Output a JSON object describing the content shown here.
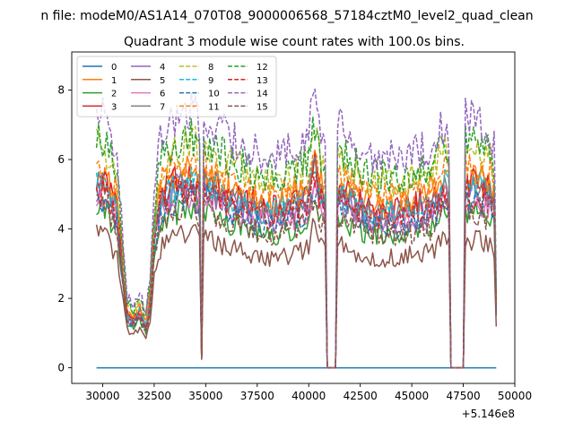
{
  "chart_data": {
    "type": "line",
    "suptitle": "n file: modeM0/AS1A14_070T08_9000006568_57184cztM0_level2_quad_clean",
    "title": "Quadrant 3 module wise count rates with 100.0s bins.",
    "xlabel": "",
    "ylabel": "",
    "offset_text": "+5.146e8",
    "xlim": [
      28500,
      50000
    ],
    "ylim": [
      -0.45,
      9.1
    ],
    "xticks": [
      30000,
      32500,
      35000,
      37500,
      40000,
      42500,
      45000,
      47500,
      50000
    ],
    "xtick_labels": [
      "30000",
      "32500",
      "35000",
      "37500",
      "40000",
      "42500",
      "45000",
      "47500",
      "50000"
    ],
    "yticks": [
      0,
      2,
      4,
      6,
      8
    ],
    "ytick_labels": [
      "0",
      "2",
      "4",
      "6",
      "8"
    ],
    "grid": false,
    "legend_position": "upper-left",
    "legend_columns": 4,
    "x_start": 29700,
    "x_end": 49100,
    "bin": 100,
    "profile_keypoints": [
      [
        29700,
        1.0
      ],
      [
        30200,
        0.97
      ],
      [
        30700,
        0.85
      ],
      [
        31000,
        0.5
      ],
      [
        31200,
        0.28
      ],
      [
        31500,
        0.25
      ],
      [
        31800,
        0.3
      ],
      [
        32100,
        0.22
      ],
      [
        32300,
        0.35
      ],
      [
        32500,
        0.7
      ],
      [
        32800,
        0.9
      ],
      [
        33200,
        0.95
      ],
      [
        33800,
        1.0
      ],
      [
        34500,
        1.0
      ],
      [
        34700,
        0.95
      ],
      [
        34800,
        0.06
      ],
      [
        34900,
        1.0
      ],
      [
        36000,
        0.92
      ],
      [
        37500,
        0.85
      ],
      [
        38500,
        0.84
      ],
      [
        39500,
        0.88
      ],
      [
        40000,
        0.92
      ],
      [
        40250,
        1.08
      ],
      [
        40500,
        0.95
      ],
      [
        40800,
        0.9
      ],
      [
        40900,
        0.0
      ],
      [
        41000,
        0.0
      ],
      [
        41300,
        0.0
      ],
      [
        41400,
        0.95
      ],
      [
        42000,
        0.9
      ],
      [
        43000,
        0.84
      ],
      [
        44000,
        0.83
      ],
      [
        45000,
        0.85
      ],
      [
        46000,
        0.88
      ],
      [
        46500,
        0.96
      ],
      [
        46700,
        0.98
      ],
      [
        46850,
        0.9
      ],
      [
        46900,
        0.0
      ],
      [
        47500,
        0.0
      ],
      [
        47600,
        1.0
      ],
      [
        48000,
        0.97
      ],
      [
        48800,
        0.94
      ],
      [
        49000,
        0.88
      ],
      [
        49100,
        0.33
      ]
    ],
    "series": [
      {
        "name": "0",
        "color": "#1f77b4",
        "dash": "solid",
        "level": 0.0,
        "constant": true
      },
      {
        "name": "1",
        "color": "#ff7f0e",
        "dash": "solid",
        "level": 5.6
      },
      {
        "name": "2",
        "color": "#2ca02c",
        "dash": "solid",
        "level": 4.6
      },
      {
        "name": "3",
        "color": "#d62728",
        "dash": "solid",
        "level": 5.5
      },
      {
        "name": "4",
        "color": "#9467bd",
        "dash": "solid",
        "level": 5.2
      },
      {
        "name": "5",
        "color": "#8c564b",
        "dash": "solid",
        "level": 3.8
      },
      {
        "name": "6",
        "color": "#e377c2",
        "dash": "solid",
        "level": 5.0
      },
      {
        "name": "7",
        "color": "#7f7f7f",
        "dash": "solid",
        "level": 5.3
      },
      {
        "name": "8",
        "color": "#bcbd22",
        "dash": "dashed",
        "level": 6.4
      },
      {
        "name": "9",
        "color": "#17becf",
        "dash": "dashed",
        "level": 5.4
      },
      {
        "name": "10",
        "color": "#1f77b4",
        "dash": "dashed",
        "level": 4.9
      },
      {
        "name": "11",
        "color": "#ff7f0e",
        "dash": "dashed",
        "level": 5.9
      },
      {
        "name": "12",
        "color": "#2ca02c",
        "dash": "dashed",
        "level": 6.6
      },
      {
        "name": "13",
        "color": "#d62728",
        "dash": "dashed",
        "level": 5.2
      },
      {
        "name": "14",
        "color": "#9467bd",
        "dash": "dashed",
        "level": 7.3
      },
      {
        "name": "15",
        "color": "#8c564b",
        "dash": "dashed",
        "level": 4.6
      }
    ]
  }
}
